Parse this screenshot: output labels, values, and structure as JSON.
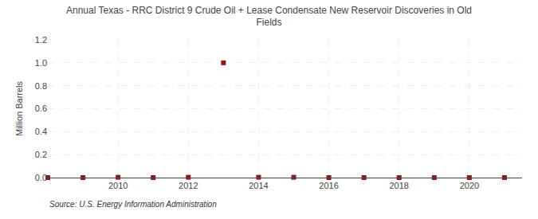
{
  "chart_data": {
    "type": "scatter",
    "title": "Annual Texas - RRC District 9 Crude Oil + Lease Condensate New Reservoir Discoveries in Old\nFields",
    "ylabel": "Million Barrels",
    "annotations": [
      "Source: U.S. Energy Information Administration"
    ],
    "x": [
      2008,
      2009,
      2010,
      2011,
      2012,
      2013,
      2014,
      2015,
      2016,
      2017,
      2018,
      2019,
      2020,
      2021
    ],
    "values": [
      0.0,
      0.0,
      0.003,
      0.0,
      0.003,
      1.0,
      0.003,
      0.003,
      0.0,
      0.0,
      0.0,
      0.0,
      0.0,
      0.0
    ],
    "color": "#8b1a1a",
    "marker": "square",
    "xlim": [
      2008.0,
      2021.5
    ],
    "ylim": [
      0.0,
      1.2
    ],
    "xticks": [
      2010,
      2012,
      2014,
      2016,
      2018,
      2020
    ],
    "yticks": [
      {
        "value": 0.0,
        "label": "0.0"
      },
      0.2,
      0.4,
      0.6,
      0.8,
      {
        "value": 1.0,
        "label": "1.0"
      },
      1.2
    ],
    "grid": true
  }
}
